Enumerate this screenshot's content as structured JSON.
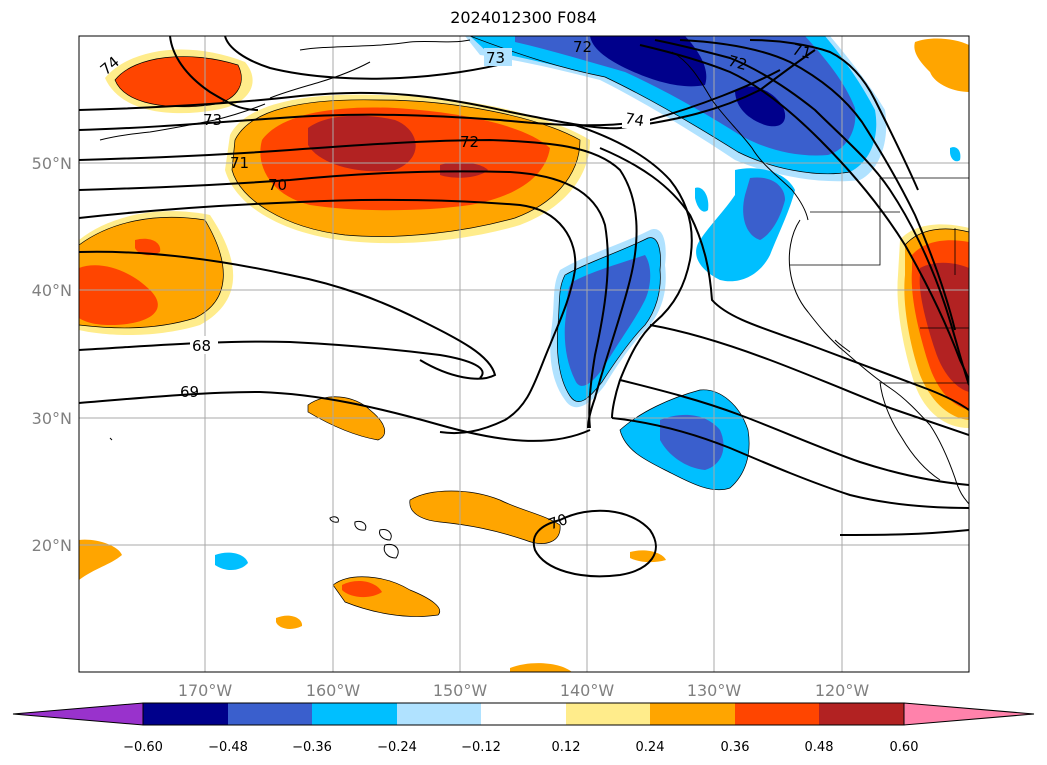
{
  "title": "2024012300 F084",
  "lat_labels": [
    "50°N",
    "40°N",
    "30°N",
    "20°N"
  ],
  "lon_labels": [
    "170°W",
    "160°W",
    "150°W",
    "140°W",
    "130°W",
    "120°W"
  ],
  "colorbar": {
    "labels": [
      "−0.60",
      "−0.48",
      "−0.36",
      "−0.24",
      "−0.12",
      "0.12",
      "0.24",
      "0.36",
      "0.48",
      "0.60"
    ],
    "colors": [
      "#9932cc",
      "#00008b",
      "#3a5fcd",
      "#00bfff",
      "#b0e2ff",
      "#ffffff",
      "#ffec8b",
      "#ffa500",
      "#ff4500",
      "#b22222",
      "#ff82ab"
    ]
  },
  "contour_labels": [
    "74",
    "73",
    "72",
    "72",
    "71",
    "74",
    "73",
    "72",
    "71",
    "70",
    "68",
    "69",
    "70"
  ]
}
